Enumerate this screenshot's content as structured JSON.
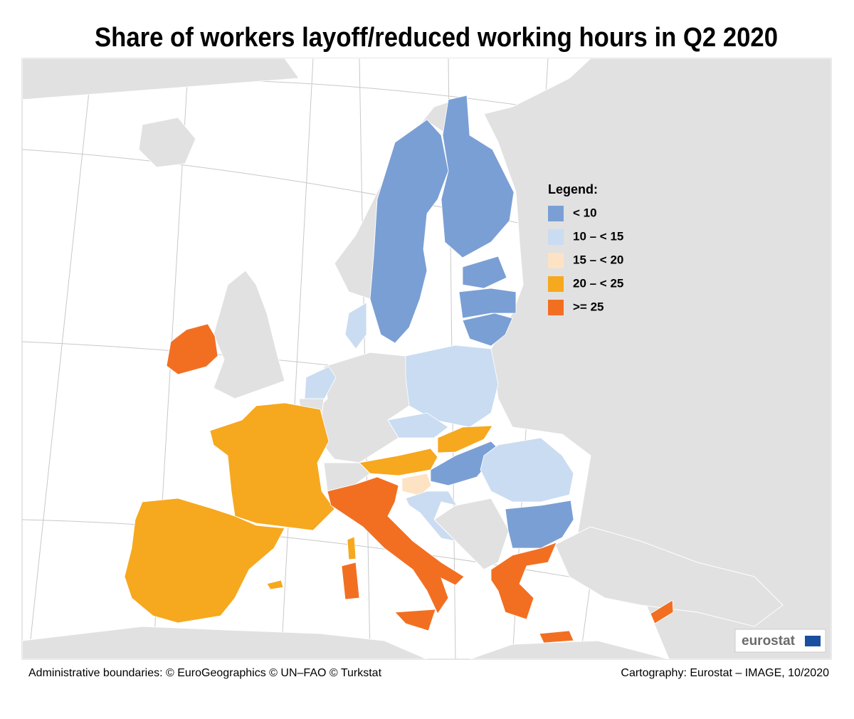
{
  "title": "Share of workers layoff/reduced working hours in Q2 2020",
  "legend": {
    "title": "Legend:",
    "items": [
      {
        "label": "< 10",
        "color": "#7a9fd4"
      },
      {
        "label": "10 – < 15",
        "color": "#cadcf1"
      },
      {
        "label": "15 – < 20",
        "color": "#fde2c3"
      },
      {
        "label": "20 – < 25",
        "color": "#f6a81e"
      },
      {
        "label": ">= 25",
        "color": "#f26f22"
      }
    ]
  },
  "logo": "eurostat",
  "footer": {
    "left": "Administrative boundaries: © EuroGeographics © UN–FAO © Turkstat",
    "right": "Cartography: Eurostat – IMAGE, 10/2020"
  }
}
